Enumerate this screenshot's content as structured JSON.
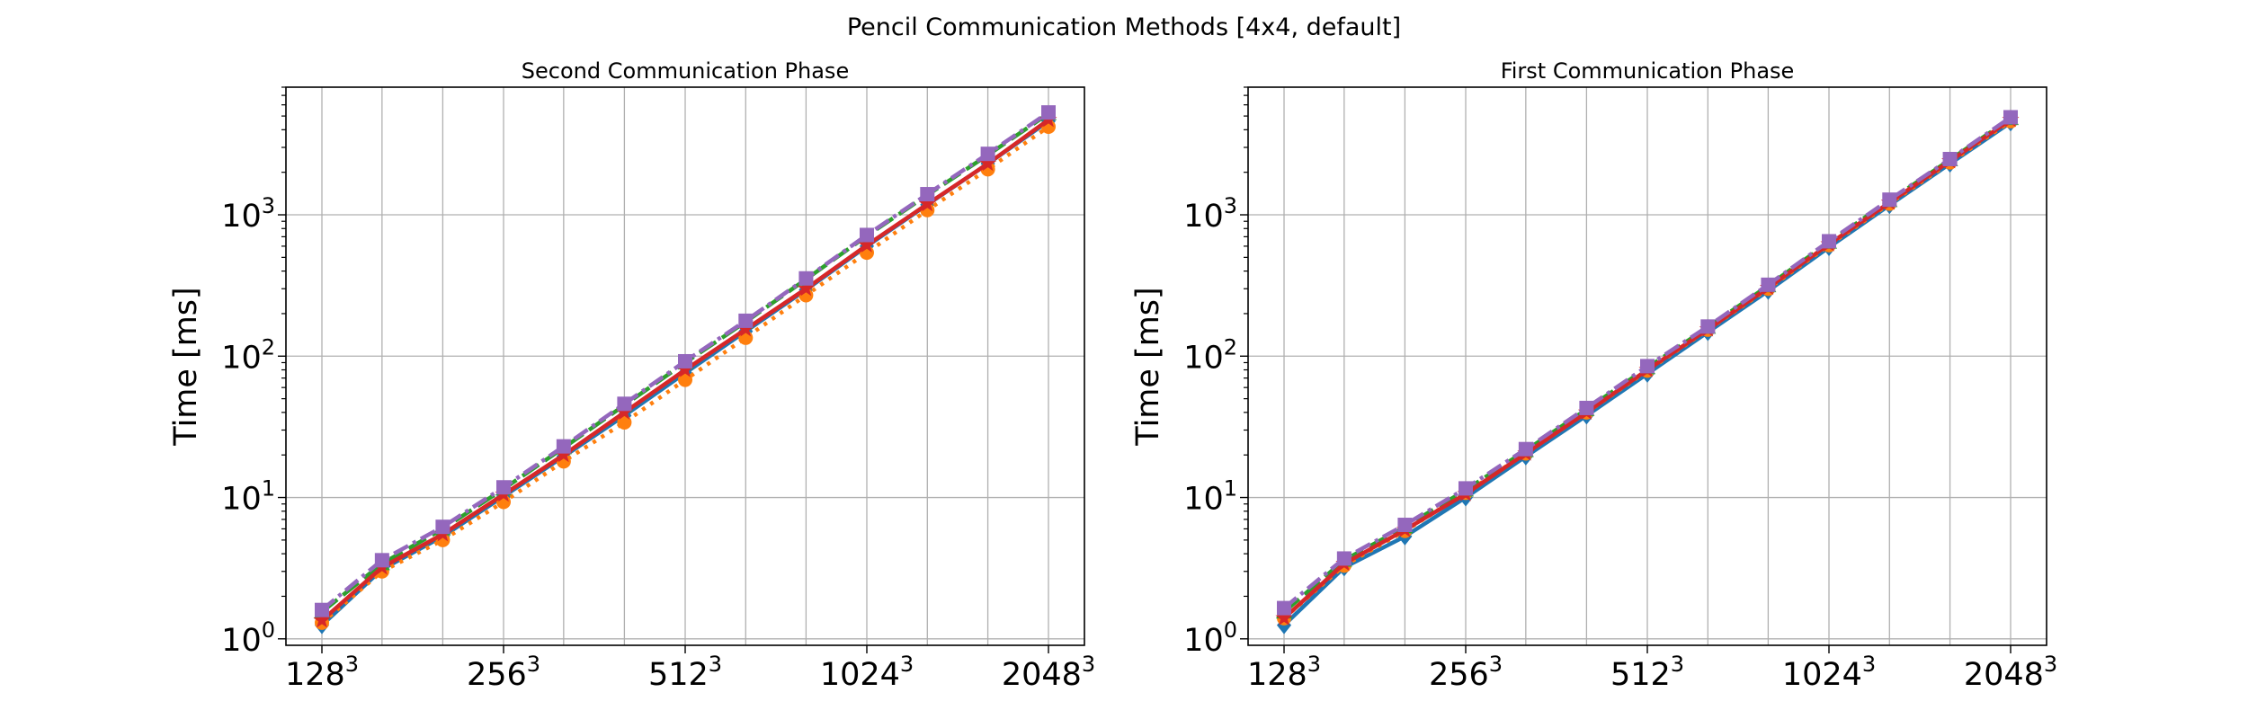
{
  "figure": {
    "title": "Pencil Communication Methods [4x4, default]"
  },
  "chart_data": [
    {
      "type": "line",
      "title": "Second Communication Phase",
      "xlabel": "",
      "ylabel": "Time [ms]",
      "y_scale": "log",
      "ylim": [
        0.9,
        8000
      ],
      "grid": true,
      "x_ticks": [
        {
          "base": "128",
          "exp": "3"
        },
        {
          "base": "256",
          "exp": "3"
        },
        {
          "base": "512",
          "exp": "3"
        },
        {
          "base": "1024",
          "exp": "3"
        },
        {
          "base": "2048",
          "exp": "3"
        }
      ],
      "y_ticks": [
        {
          "base": "10",
          "exp": "0"
        },
        {
          "base": "10",
          "exp": "1"
        },
        {
          "base": "10",
          "exp": "2"
        },
        {
          "base": "10",
          "exp": "3"
        }
      ],
      "x": [
        128,
        161,
        203,
        256,
        322,
        406,
        512,
        645,
        812,
        1024,
        1290,
        1625,
        2048
      ],
      "series": [
        {
          "color": "#1f77b4",
          "dash": "",
          "marker": "diamond",
          "values": [
            1.25,
            3.1,
            5.3,
            10.2,
            19.5,
            38,
            76,
            150,
            295,
            600,
            1180,
            2300,
            4600
          ]
        },
        {
          "color": "#ff7f0e",
          "dash": "4,7",
          "marker": "circle",
          "values": [
            1.3,
            3.0,
            5.0,
            9.3,
            18,
            34,
            68,
            135,
            270,
            540,
            1080,
            2100,
            4200
          ]
        },
        {
          "color": "#2ca02c",
          "dash": "22,8",
          "marker": "triangle",
          "values": [
            1.55,
            3.4,
            6.0,
            11.5,
            22.5,
            45,
            90,
            175,
            350,
            710,
            1380,
            2650,
            5200
          ]
        },
        {
          "color": "#d62728",
          "dash": "",
          "marker": "star",
          "values": [
            1.35,
            3.2,
            5.5,
            10.5,
            20,
            40,
            80,
            155,
            300,
            610,
            1190,
            2300,
            4700
          ]
        },
        {
          "color": "#9467bd",
          "dash": "18,6,4,6",
          "marker": "square",
          "values": [
            1.6,
            3.6,
            6.2,
            11.8,
            23,
            46,
            92,
            178,
            355,
            720,
            1400,
            2700,
            5300
          ]
        }
      ]
    },
    {
      "type": "line",
      "title": "First Communication Phase",
      "xlabel": "",
      "ylabel": "Time [ms]",
      "y_scale": "log",
      "ylim": [
        0.9,
        8000
      ],
      "grid": true,
      "x_ticks": [
        {
          "base": "128",
          "exp": "3"
        },
        {
          "base": "256",
          "exp": "3"
        },
        {
          "base": "512",
          "exp": "3"
        },
        {
          "base": "1024",
          "exp": "3"
        },
        {
          "base": "2048",
          "exp": "3"
        }
      ],
      "y_ticks": [
        {
          "base": "10",
          "exp": "0"
        },
        {
          "base": "10",
          "exp": "1"
        },
        {
          "base": "10",
          "exp": "2"
        },
        {
          "base": "10",
          "exp": "3"
        }
      ],
      "x": [
        128,
        161,
        203,
        256,
        322,
        406,
        512,
        645,
        812,
        1024,
        1290,
        1625,
        2048
      ],
      "series": [
        {
          "color": "#1f77b4",
          "dash": "",
          "marker": "diamond",
          "values": [
            1.25,
            3.2,
            5.3,
            10.0,
            19.5,
            38,
            75,
            148,
            290,
            590,
            1170,
            2300,
            4500
          ]
        },
        {
          "color": "#ff7f0e",
          "dash": "4,7",
          "marker": "circle",
          "values": [
            1.4,
            3.3,
            5.8,
            10.8,
            20.5,
            40,
            79,
            154,
            300,
            610,
            1200,
            2350,
            4600
          ]
        },
        {
          "color": "#2ca02c",
          "dash": "22,8",
          "marker": "triangle",
          "values": [
            1.55,
            3.6,
            6.2,
            11.3,
            21.5,
            42,
            83,
            160,
            315,
            640,
            1260,
            2450,
            4800
          ]
        },
        {
          "color": "#d62728",
          "dash": "",
          "marker": "star",
          "values": [
            1.4,
            3.4,
            5.9,
            10.6,
            20.5,
            40,
            80,
            155,
            305,
            620,
            1220,
            2400,
            4700
          ]
        },
        {
          "color": "#9467bd",
          "dash": "18,6,4,6",
          "marker": "square",
          "values": [
            1.65,
            3.7,
            6.4,
            11.6,
            22,
            43,
            85,
            162,
            320,
            650,
            1280,
            2480,
            4900
          ]
        }
      ]
    }
  ]
}
